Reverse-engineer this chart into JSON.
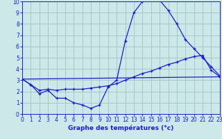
{
  "xlabel": "Graphe des températures (°c)",
  "bg_color": "#cce8e8",
  "line_color": "#1a1acc",
  "grid_color": "#99bbbb",
  "xlim": [
    0,
    23
  ],
  "ylim": [
    0,
    10
  ],
  "xticks": [
    0,
    1,
    2,
    3,
    4,
    5,
    6,
    7,
    8,
    9,
    10,
    11,
    12,
    13,
    14,
    15,
    16,
    17,
    18,
    19,
    20,
    21,
    22,
    23
  ],
  "yticks": [
    0,
    1,
    2,
    3,
    4,
    5,
    6,
    7,
    8,
    9,
    10
  ],
  "series1_x": [
    0,
    1,
    2,
    3,
    4,
    5,
    6,
    7,
    8,
    9,
    10,
    11,
    12,
    13,
    14,
    15,
    16,
    17,
    18,
    19,
    20,
    21,
    22,
    23
  ],
  "series1_y": [
    3.1,
    2.6,
    1.8,
    2.1,
    1.4,
    1.4,
    1.0,
    0.8,
    0.5,
    0.8,
    2.4,
    3.0,
    6.5,
    9.0,
    10.0,
    10.2,
    10.1,
    9.2,
    8.0,
    6.6,
    5.8,
    5.0,
    4.2,
    3.4
  ],
  "series2_x": [
    0,
    1,
    2,
    3,
    4,
    5,
    6,
    7,
    8,
    9,
    10,
    11,
    12,
    13,
    14,
    15,
    16,
    17,
    18,
    19,
    20,
    21,
    22,
    23
  ],
  "series2_y": [
    3.1,
    2.6,
    2.1,
    2.2,
    2.1,
    2.2,
    2.2,
    2.2,
    2.3,
    2.4,
    2.5,
    2.7,
    3.0,
    3.3,
    3.6,
    3.8,
    4.1,
    4.4,
    4.6,
    4.9,
    5.1,
    5.2,
    3.9,
    3.3
  ],
  "series3_x": [
    0,
    23
  ],
  "series3_y": [
    3.1,
    3.3
  ]
}
